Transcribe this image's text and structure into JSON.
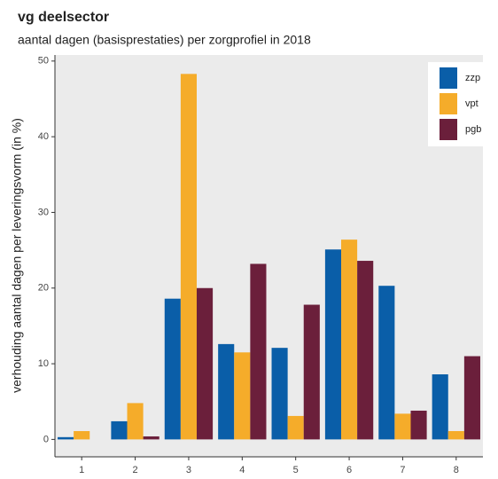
{
  "chart_data": {
    "type": "bar",
    "title": "vg deelsector",
    "subtitle": "aantal dagen (basisprestaties) per zorgprofiel in 2018",
    "y_label": "verhouding aantal dagen per leveringsvorm (in %)",
    "categories": [
      "1",
      "2",
      "3",
      "4",
      "5",
      "6",
      "7",
      "8"
    ],
    "series": [
      {
        "name": "zzp",
        "color": "#0a5ea8",
        "values": [
          0.3,
          2.4,
          18.6,
          12.6,
          12.1,
          25.1,
          20.3,
          8.6
        ]
      },
      {
        "name": "vpt",
        "color": "#f5ac2a",
        "values": [
          1.1,
          4.8,
          48.3,
          11.5,
          3.1,
          26.4,
          3.4,
          1.1
        ]
      },
      {
        "name": "pgb",
        "color": "#6b1f3b",
        "values": [
          0,
          0.4,
          20.0,
          23.2,
          17.8,
          23.6,
          3.8,
          11.0
        ]
      }
    ],
    "ylim": [
      -2.3,
      50.8
    ],
    "yticks": [
      0,
      10,
      20,
      30,
      40,
      50
    ],
    "grid": false,
    "legend": "top-right"
  }
}
